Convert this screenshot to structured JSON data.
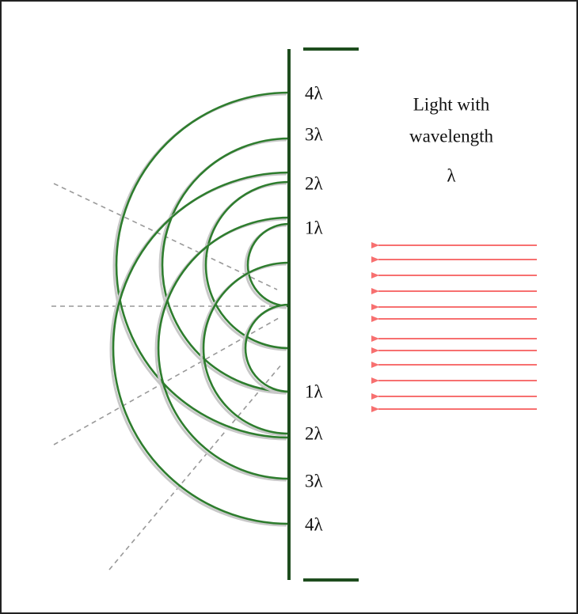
{
  "labels": [
    "4λ",
    "3λ",
    "2λ",
    "1λ",
    "1λ",
    "2λ",
    "3λ",
    "4λ"
  ],
  "caption": [
    "Light with",
    "wavelength",
    "λ"
  ]
}
